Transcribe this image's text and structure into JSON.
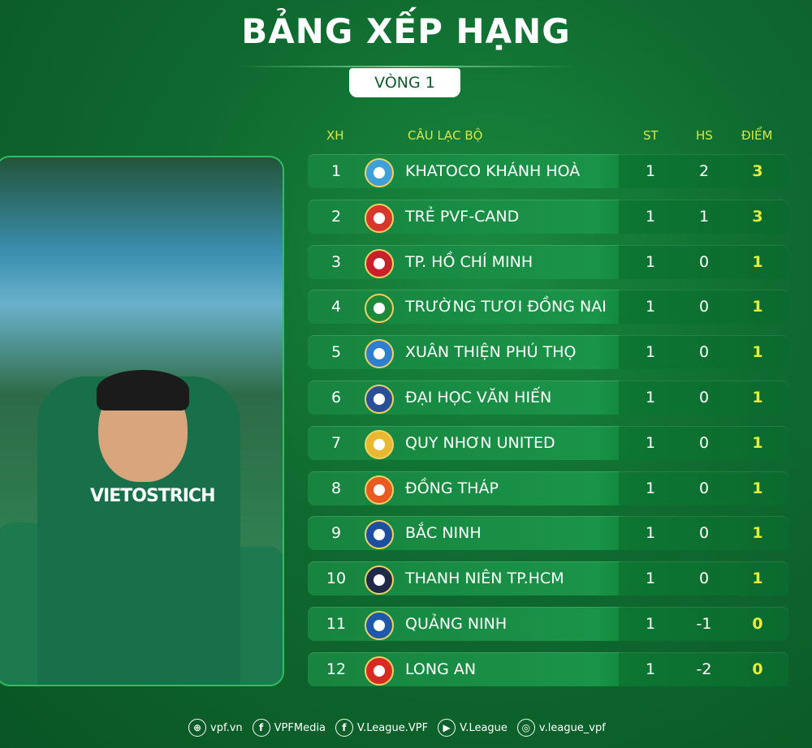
{
  "title": "BẢNG XẾP HẠNG",
  "round": "VÒNG 1",
  "photo": {
    "shirt_text": "VIETOSTRICH"
  },
  "columns": {
    "rank": "XH",
    "club": "CÂU LẠC BỘ",
    "played": "ST",
    "gd": "HS",
    "points": "ĐIỂM"
  },
  "colors": {
    "header": "#d4e84a",
    "points": "#e6ee3c",
    "background": "#0f6a2f"
  },
  "rows": [
    {
      "rank": "1",
      "club": "KHATOCO KHÁNH HOÀ",
      "played": "1",
      "gd": "2",
      "points": "3",
      "logo_color": "#3fa0d8"
    },
    {
      "rank": "2",
      "club": "TRẺ PVF-CAND",
      "played": "1",
      "gd": "1",
      "points": "3",
      "logo_color": "#d8362a"
    },
    {
      "rank": "3",
      "club": "TP. HỒ CHÍ MINH",
      "played": "1",
      "gd": "0",
      "points": "1",
      "logo_color": "#c8202a"
    },
    {
      "rank": "4",
      "club": "TRƯỜNG TƯƠI ĐỒNG NAI",
      "played": "1",
      "gd": "0",
      "points": "1",
      "logo_color": "#1c8a3a"
    },
    {
      "rank": "5",
      "club": "XUÂN THIỆN PHÚ THỌ",
      "played": "1",
      "gd": "0",
      "points": "1",
      "logo_color": "#2d7fd0"
    },
    {
      "rank": "6",
      "club": "ĐẠI HỌC VĂN HIẾN",
      "played": "1",
      "gd": "0",
      "points": "1",
      "logo_color": "#2a4f9a"
    },
    {
      "rank": "7",
      "club": "QUY NHƠN UNITED",
      "played": "1",
      "gd": "0",
      "points": "1",
      "logo_color": "#e8b830"
    },
    {
      "rank": "8",
      "club": "ĐỒNG THÁP",
      "played": "1",
      "gd": "0",
      "points": "1",
      "logo_color": "#e85a20"
    },
    {
      "rank": "9",
      "club": "BẮC NINH",
      "played": "1",
      "gd": "0",
      "points": "1",
      "logo_color": "#1d4fa0"
    },
    {
      "rank": "10",
      "club": "THANH NIÊN TP.HCM",
      "played": "1",
      "gd": "0",
      "points": "1",
      "logo_color": "#1f2a4a"
    },
    {
      "rank": "11",
      "club": "QUẢNG NINH",
      "played": "1",
      "gd": "-1",
      "points": "0",
      "logo_color": "#1e58a8"
    },
    {
      "rank": "12",
      "club": "LONG AN",
      "played": "1",
      "gd": "-2",
      "points": "0",
      "logo_color": "#d82a20"
    }
  ],
  "footer": [
    {
      "icon": "globe-icon",
      "glyph": "⊕",
      "label": "vpf.vn"
    },
    {
      "icon": "facebook-icon",
      "glyph": "f",
      "label": "VPFMedia"
    },
    {
      "icon": "facebook-icon",
      "glyph": "f",
      "label": "V.League.VPF"
    },
    {
      "icon": "youtube-icon",
      "glyph": "▶",
      "label": "V.League"
    },
    {
      "icon": "instagram-icon",
      "glyph": "◎",
      "label": "v.league_vpf"
    }
  ]
}
